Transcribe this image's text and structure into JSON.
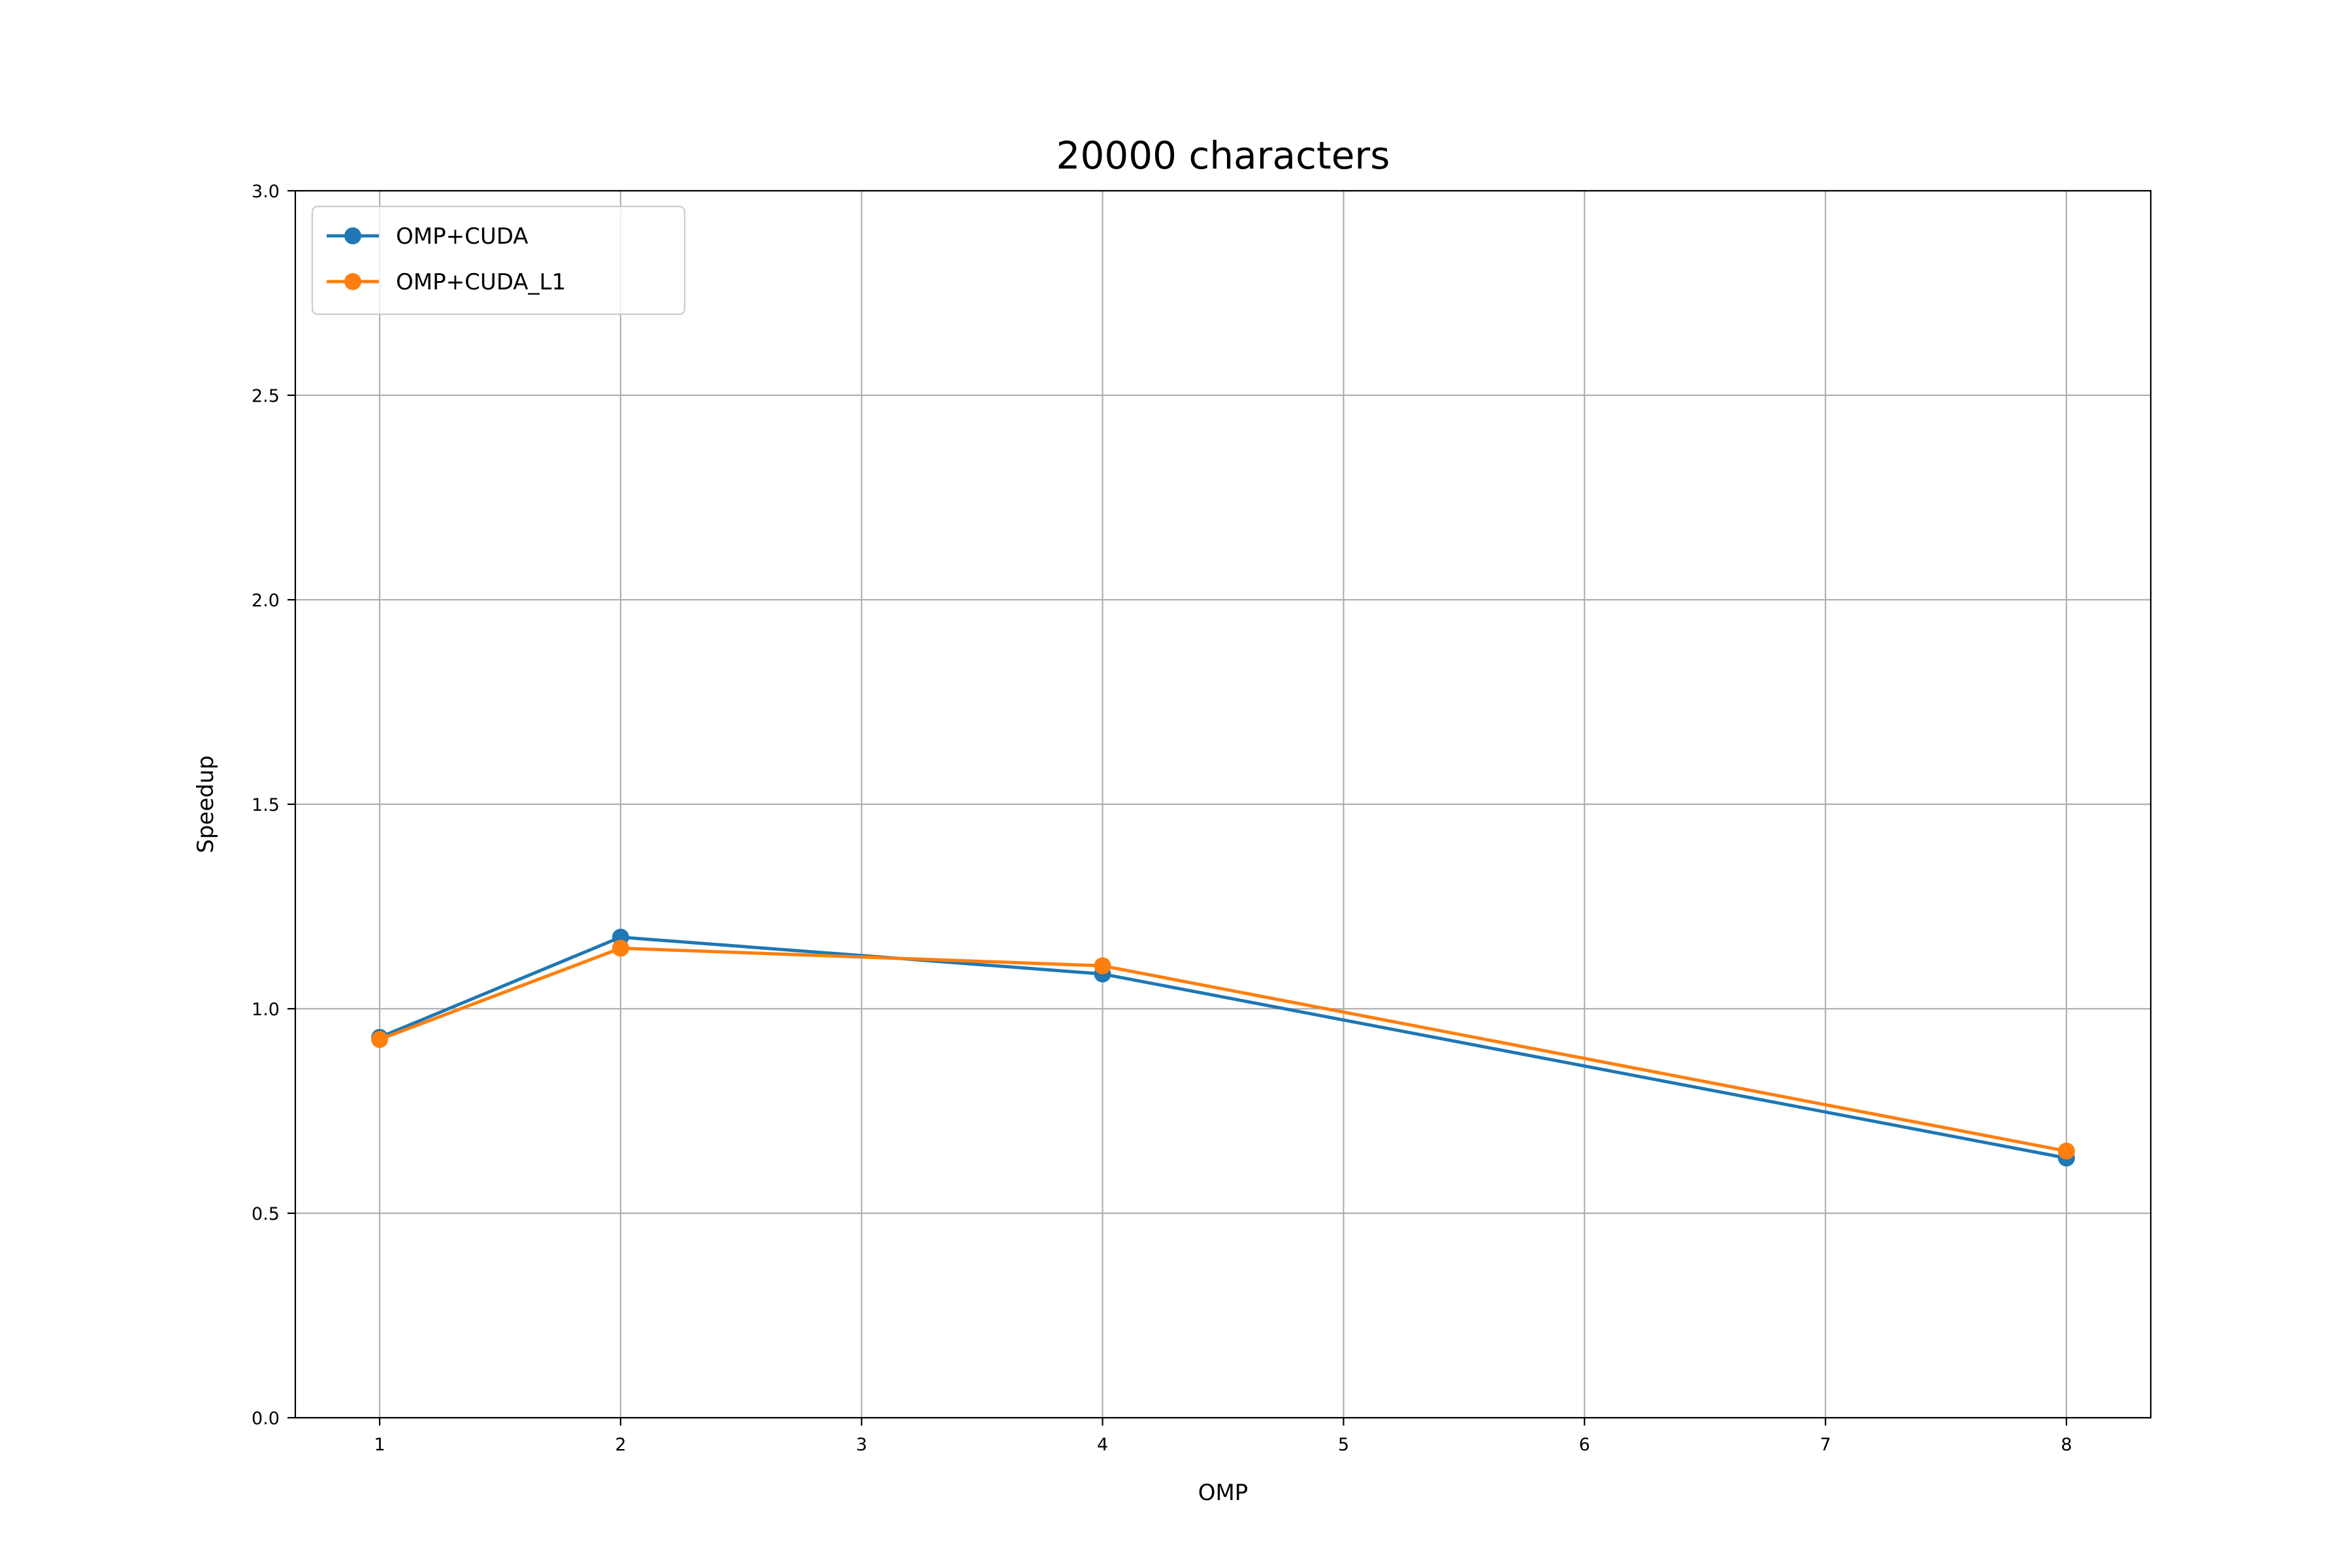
{
  "chart_data": {
    "type": "line",
    "title": "20000 characters",
    "xlabel": "OMP",
    "ylabel": "Speedup",
    "xlim": [
      0.65,
      8.35
    ],
    "ylim": [
      0.0,
      3.0
    ],
    "xticks": [
      1,
      2,
      3,
      4,
      5,
      6,
      7,
      8
    ],
    "xtick_labels": [
      "1",
      "2",
      "3",
      "4",
      "5",
      "6",
      "7",
      "8"
    ],
    "yticks": [
      0.0,
      0.5,
      1.0,
      1.5,
      2.0,
      2.5,
      3.0
    ],
    "ytick_labels": [
      "0.0",
      "0.5",
      "1.0",
      "1.5",
      "2.0",
      "2.5",
      "3.0"
    ],
    "grid": true,
    "legend_position": "upper-left",
    "series": [
      {
        "name": "OMP+CUDA",
        "color": "#1f77b4",
        "x": [
          1,
          2,
          4,
          8
        ],
        "y": [
          0.93,
          1.175,
          1.085,
          0.635
        ]
      },
      {
        "name": "OMP+CUDA_L1",
        "color": "#ff7f0e",
        "x": [
          1,
          2,
          4,
          8
        ],
        "y": [
          0.925,
          1.148,
          1.105,
          0.652
        ]
      }
    ]
  }
}
